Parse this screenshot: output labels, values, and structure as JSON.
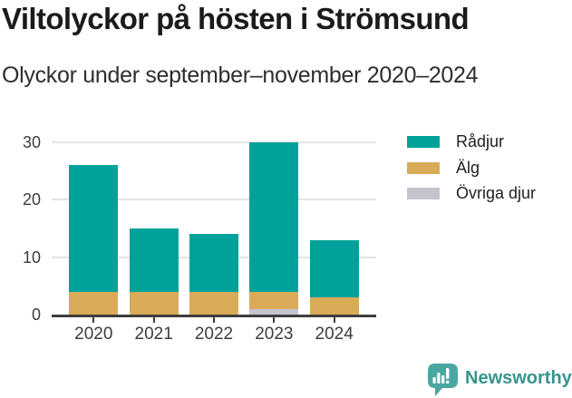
{
  "title": "Viltolyckor på hösten i Strömsund",
  "subtitle": "Olyckor under september–november 2020–2024",
  "chart_data": {
    "type": "bar",
    "stacked": true,
    "title": "Viltolyckor på hösten i Strömsund",
    "subtitle": "Olyckor under september–november 2020–2024",
    "categories": [
      "2020",
      "2021",
      "2022",
      "2023",
      "2024"
    ],
    "series": [
      {
        "name": "Rådjur",
        "color": "#00a29a",
        "values": [
          22,
          11,
          10,
          26,
          10
        ]
      },
      {
        "name": "Älg",
        "color": "#d9ab59",
        "values": [
          4,
          4,
          4,
          3,
          3
        ]
      },
      {
        "name": "Övriga djur",
        "color": "#c6c3ce",
        "values": [
          0,
          0,
          0,
          1,
          0
        ]
      }
    ],
    "stack_order_bottom_to_top": [
      "Övriga djur",
      "Älg",
      "Rådjur"
    ],
    "totals": [
      26,
      15,
      14,
      30,
      13
    ],
    "xlabel": "",
    "ylabel": "",
    "ylim": [
      0,
      30
    ],
    "yticks": [
      0,
      10,
      20,
      30
    ],
    "grid": true,
    "legend_position": "right"
  },
  "branding": {
    "name": "Newsworthy",
    "text_color": "#37948e",
    "icon_color": "#4aa6a0",
    "icon": "newsworthy-bar-chart-bubble-icon"
  },
  "colors": {
    "background": "#ffffff",
    "axis": "#3e3e3e",
    "gridline": "#e4e4e4",
    "tick_label": "#3d3d3d",
    "title_text": "#1b1b1b",
    "subtitle_text": "#2e2e2e"
  }
}
